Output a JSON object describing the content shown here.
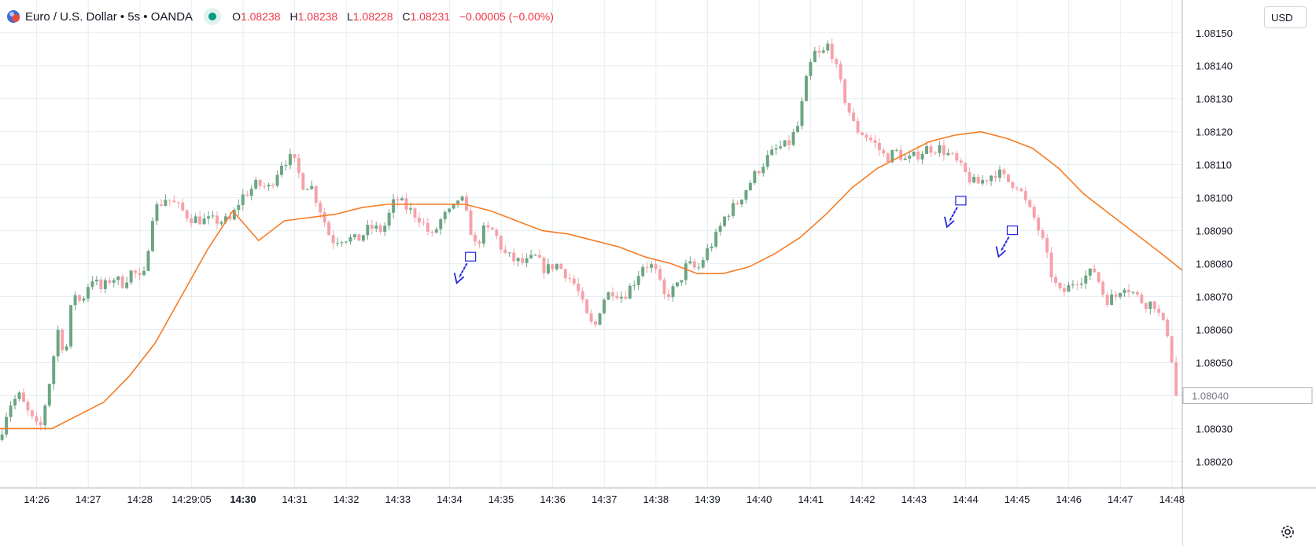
{
  "header": {
    "title": "Euro / U.S. Dollar • 5s • OANDA",
    "ohlc": [
      {
        "label": "O",
        "value": "1.08238"
      },
      {
        "label": "H",
        "value": "1.08238"
      },
      {
        "label": "L",
        "value": "1.08228"
      },
      {
        "label": "C",
        "value": "1.08231"
      }
    ],
    "change": "−0.00005 (−0.00%)",
    "status_color": "#089981"
  },
  "price_axis": {
    "currency_button": "USD",
    "current_price_label": "1.08040"
  },
  "colors": {
    "up": "#6ba583",
    "down": "#f7a1a9",
    "ma": "#f57c24",
    "annotation": "#2626d9",
    "grid": "#e6eef3",
    "text": "#131722"
  },
  "chart_data": {
    "type": "candlestick",
    "symbol": "EURUSD",
    "timeframe": "5s",
    "y_ticks": [
      1.0815,
      1.0814,
      1.0813,
      1.0812,
      1.0811,
      1.081,
      1.0809,
      1.0808,
      1.0807,
      1.0806,
      1.0805,
      1.0804,
      1.0803,
      1.0802
    ],
    "x_ticks": [
      {
        "label": "14:26",
        "minute": 26.0
      },
      {
        "label": "14:27",
        "minute": 27.0
      },
      {
        "label": "14:28",
        "minute": 28.0
      },
      {
        "label": "14:29:05",
        "minute": 29.0,
        "bold": false
      },
      {
        "label": "14:30",
        "minute": 30.0,
        "bold": true
      },
      {
        "label": "14:31",
        "minute": 31.0
      },
      {
        "label": "14:32",
        "minute": 32.0
      },
      {
        "label": "14:33",
        "minute": 33.0
      },
      {
        "label": "14:34",
        "minute": 34.0
      },
      {
        "label": "14:35",
        "minute": 35.0
      },
      {
        "label": "14:36",
        "minute": 36.0
      },
      {
        "label": "14:37",
        "minute": 37.0
      },
      {
        "label": "14:38",
        "minute": 38.0
      },
      {
        "label": "14:39",
        "minute": 39.0
      },
      {
        "label": "14:40",
        "minute": 40.0
      },
      {
        "label": "14:41",
        "minute": 41.0
      },
      {
        "label": "14:42",
        "minute": 42.0
      },
      {
        "label": "14:43",
        "minute": 43.0
      },
      {
        "label": "14:44",
        "minute": 44.0
      },
      {
        "label": "14:45",
        "minute": 45.0
      },
      {
        "label": "14:46",
        "minute": 46.0
      },
      {
        "label": "14:47",
        "minute": 47.0
      },
      {
        "label": "14:48",
        "minute": 48.0
      }
    ],
    "x_range_minutes": [
      25.29,
      48.2
    ],
    "y_range": [
      1.08012,
      1.08159
    ],
    "path_points": [
      [
        25.3,
        1.08026
      ],
      [
        25.5,
        1.08037
      ],
      [
        25.7,
        1.0804
      ],
      [
        25.9,
        1.08034
      ],
      [
        26.1,
        1.08029
      ],
      [
        26.3,
        1.08045
      ],
      [
        26.45,
        1.0806
      ],
      [
        26.6,
        1.08052
      ],
      [
        26.75,
        1.08072
      ],
      [
        26.9,
        1.08068
      ],
      [
        27.1,
        1.08076
      ],
      [
        27.3,
        1.08072
      ],
      [
        27.5,
        1.08076
      ],
      [
        27.7,
        1.08074
      ],
      [
        27.9,
        1.08078
      ],
      [
        28.1,
        1.08074
      ],
      [
        28.3,
        1.08096
      ],
      [
        28.55,
        1.081
      ],
      [
        28.8,
        1.08097
      ],
      [
        29.0,
        1.08094
      ],
      [
        29.3,
        1.08093
      ],
      [
        29.55,
        1.08093
      ],
      [
        29.8,
        1.08093
      ],
      [
        30.0,
        1.081
      ],
      [
        30.3,
        1.08104
      ],
      [
        30.55,
        1.08103
      ],
      [
        30.8,
        1.08111
      ],
      [
        31.0,
        1.08112
      ],
      [
        31.2,
        1.08104
      ],
      [
        31.35,
        1.08104
      ],
      [
        31.55,
        1.08096
      ],
      [
        31.75,
        1.08087
      ],
      [
        32.0,
        1.08088
      ],
      [
        32.25,
        1.08087
      ],
      [
        32.5,
        1.08091
      ],
      [
        32.75,
        1.0809
      ],
      [
        33.0,
        1.081
      ],
      [
        33.2,
        1.08097
      ],
      [
        33.45,
        1.08094
      ],
      [
        33.7,
        1.08088
      ],
      [
        33.9,
        1.08094
      ],
      [
        34.1,
        1.08096
      ],
      [
        34.25,
        1.08101
      ],
      [
        34.4,
        1.08093
      ],
      [
        34.55,
        1.08085
      ],
      [
        34.7,
        1.0809
      ],
      [
        34.9,
        1.0809
      ],
      [
        35.1,
        1.08083
      ],
      [
        35.3,
        1.08081
      ],
      [
        35.5,
        1.0808
      ],
      [
        35.7,
        1.08082
      ],
      [
        35.9,
        1.08078
      ],
      [
        36.1,
        1.0808
      ],
      [
        36.3,
        1.08077
      ],
      [
        36.5,
        1.08073
      ],
      [
        36.7,
        1.08064
      ],
      [
        36.85,
        1.0806
      ],
      [
        37.0,
        1.08069
      ],
      [
        37.2,
        1.08072
      ],
      [
        37.4,
        1.0807
      ],
      [
        37.6,
        1.08074
      ],
      [
        37.8,
        1.0808
      ],
      [
        38.0,
        1.08079
      ],
      [
        38.2,
        1.0807
      ],
      [
        38.45,
        1.08073
      ],
      [
        38.65,
        1.0808
      ],
      [
        38.85,
        1.08078
      ],
      [
        39.0,
        1.08083
      ],
      [
        39.2,
        1.08088
      ],
      [
        39.4,
        1.08095
      ],
      [
        39.6,
        1.08098
      ],
      [
        39.8,
        1.08103
      ],
      [
        40.0,
        1.08108
      ],
      [
        40.2,
        1.08112
      ],
      [
        40.4,
        1.08115
      ],
      [
        40.6,
        1.08116
      ],
      [
        40.8,
        1.08122
      ],
      [
        40.95,
        1.08135
      ],
      [
        41.1,
        1.08144
      ],
      [
        41.25,
        1.08143
      ],
      [
        41.4,
        1.08147
      ],
      [
        41.5,
        1.08141
      ],
      [
        41.7,
        1.0813
      ],
      [
        41.9,
        1.08121
      ],
      [
        42.1,
        1.08119
      ],
      [
        42.3,
        1.08116
      ],
      [
        42.5,
        1.08112
      ],
      [
        42.7,
        1.08114
      ],
      [
        42.9,
        1.08111
      ],
      [
        43.1,
        1.08113
      ],
      [
        43.3,
        1.08115
      ],
      [
        43.55,
        1.08115
      ],
      [
        43.8,
        1.08112
      ],
      [
        44.0,
        1.08108
      ],
      [
        44.1,
        1.08106
      ],
      [
        44.25,
        1.08104
      ],
      [
        44.45,
        1.08106
      ],
      [
        44.65,
        1.08108
      ],
      [
        44.85,
        1.08105
      ],
      [
        45.05,
        1.08104
      ],
      [
        45.25,
        1.08097
      ],
      [
        45.4,
        1.08093
      ],
      [
        45.55,
        1.08086
      ],
      [
        45.7,
        1.08077
      ],
      [
        45.85,
        1.08071
      ],
      [
        46.0,
        1.08072
      ],
      [
        46.15,
        1.08075
      ],
      [
        46.35,
        1.08076
      ],
      [
        46.55,
        1.08078
      ],
      [
        46.75,
        1.08069
      ],
      [
        46.95,
        1.0807
      ],
      [
        47.1,
        1.08074
      ],
      [
        47.3,
        1.08071
      ],
      [
        47.5,
        1.08068
      ],
      [
        47.7,
        1.08068
      ],
      [
        47.85,
        1.08062
      ],
      [
        48.0,
        1.08058
      ],
      [
        48.1,
        1.0804
      ]
    ],
    "ma_series": [
      [
        25.29,
        1.0803
      ],
      [
        25.8,
        1.0803
      ],
      [
        26.3,
        1.0803
      ],
      [
        26.8,
        1.08034
      ],
      [
        27.3,
        1.08038
      ],
      [
        27.8,
        1.08046
      ],
      [
        28.3,
        1.08056
      ],
      [
        28.8,
        1.0807
      ],
      [
        29.3,
        1.08084
      ],
      [
        29.8,
        1.08096
      ],
      [
        30.3,
        1.08087
      ],
      [
        30.8,
        1.08093
      ],
      [
        31.3,
        1.08094
      ],
      [
        31.8,
        1.08095
      ],
      [
        32.3,
        1.08097
      ],
      [
        32.8,
        1.08098
      ],
      [
        33.3,
        1.08098
      ],
      [
        33.8,
        1.08098
      ],
      [
        34.3,
        1.08098
      ],
      [
        34.8,
        1.08096
      ],
      [
        35.3,
        1.08093
      ],
      [
        35.8,
        1.0809
      ],
      [
        36.3,
        1.08089
      ],
      [
        36.8,
        1.08087
      ],
      [
        37.3,
        1.08085
      ],
      [
        37.8,
        1.08082
      ],
      [
        38.3,
        1.0808
      ],
      [
        38.8,
        1.08077
      ],
      [
        39.3,
        1.08077
      ],
      [
        39.8,
        1.08079
      ],
      [
        40.3,
        1.08083
      ],
      [
        40.8,
        1.08088
      ],
      [
        41.3,
        1.08095
      ],
      [
        41.8,
        1.08103
      ],
      [
        42.3,
        1.08109
      ],
      [
        42.8,
        1.08113
      ],
      [
        43.3,
        1.08117
      ],
      [
        43.8,
        1.08119
      ],
      [
        44.3,
        1.0812
      ],
      [
        44.8,
        1.08118
      ],
      [
        45.3,
        1.08115
      ],
      [
        45.8,
        1.08109
      ],
      [
        46.3,
        1.08101
      ],
      [
        46.8,
        1.08095
      ],
      [
        47.3,
        1.08089
      ],
      [
        47.8,
        1.08083
      ],
      [
        48.2,
        1.08078
      ]
    ],
    "annotations": [
      {
        "minute": 34.4,
        "price": 1.08082
      },
      {
        "minute": 43.9,
        "price": 1.08099
      },
      {
        "minute": 44.9,
        "price": 1.0809
      }
    ],
    "current_price": 1.0804
  }
}
